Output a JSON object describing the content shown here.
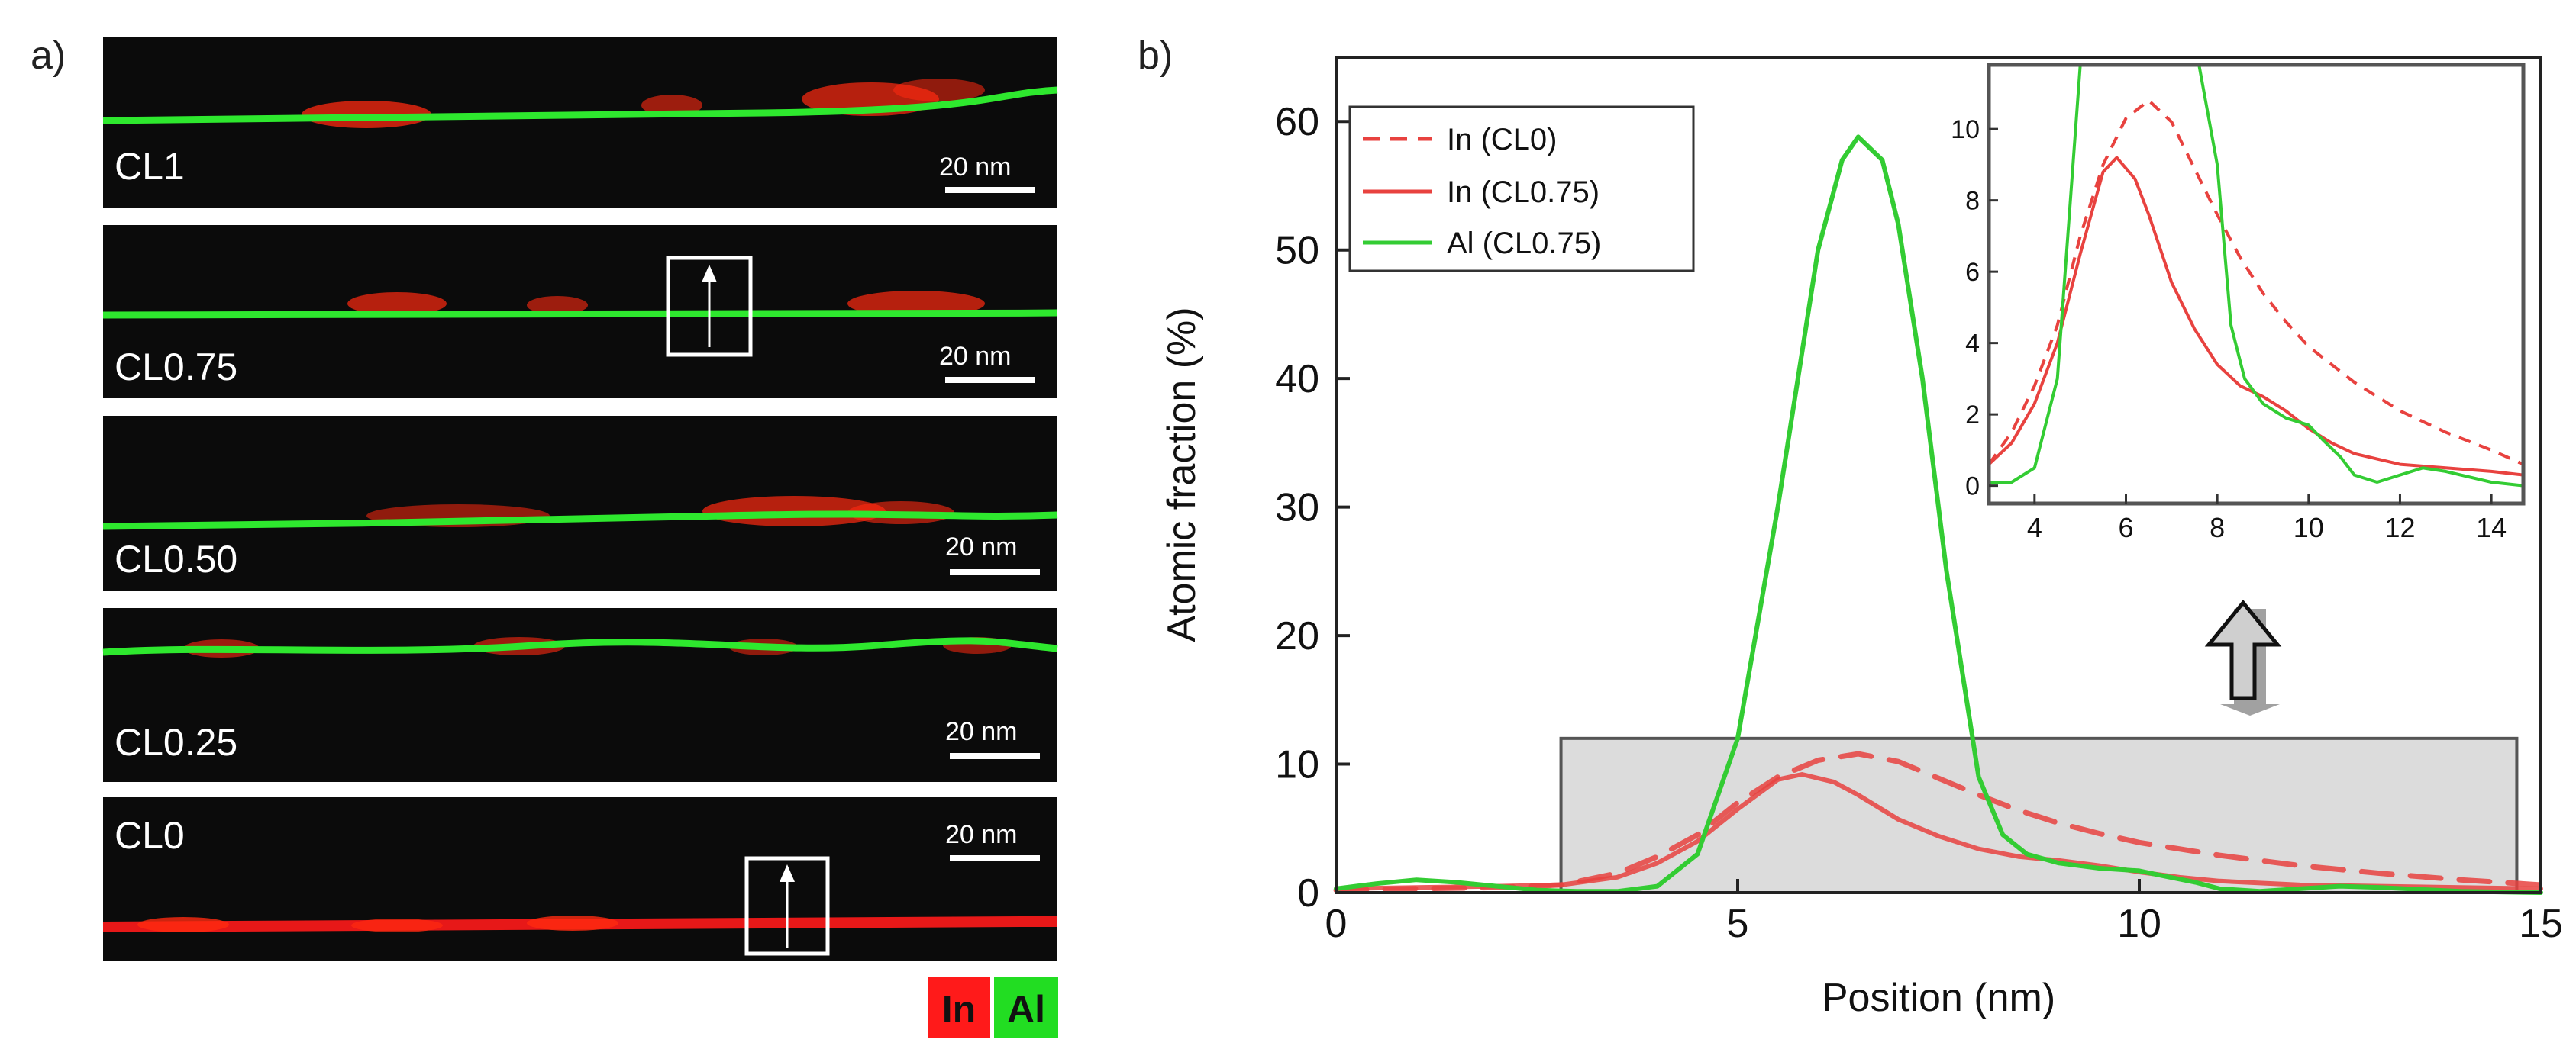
{
  "panel_a": {
    "label": "a)",
    "scale_bar_text": "20 nm",
    "legend": {
      "in_label": "In",
      "al_label": "Al"
    },
    "images": [
      {
        "name": "CL1",
        "label": "CL1",
        "has_arrow_box": false,
        "al_layer": true
      },
      {
        "name": "CL0.75",
        "label": "CL0.75",
        "has_arrow_box": true,
        "al_layer": true
      },
      {
        "name": "CL0.50",
        "label": "CL0.50",
        "has_arrow_box": false,
        "al_layer": true
      },
      {
        "name": "CL0.25",
        "label": "CL0.25",
        "has_arrow_box": false,
        "al_layer": true
      },
      {
        "name": "CL0",
        "label": "CL0",
        "has_arrow_box": true,
        "al_layer": false
      }
    ],
    "colors": {
      "in": "#ff1a1a",
      "al": "#22dd22",
      "background": "#0b0b0b"
    }
  },
  "panel_b": {
    "label": "b)",
    "chart_data": [
      {
        "name": "main",
        "type": "line",
        "xlabel": "Position (nm)",
        "ylabel": "Atomic fraction (%)",
        "xlim": [
          0,
          15
        ],
        "ylim": [
          0,
          65
        ],
        "xticks": [
          0,
          5,
          10,
          15
        ],
        "yticks": [
          0,
          10,
          20,
          30,
          40,
          50,
          60
        ],
        "legend": {
          "placement": "top-left"
        },
        "highlight_region": {
          "x": [
            2.8,
            14.7
          ],
          "y": [
            0,
            12
          ]
        },
        "series": [
          {
            "name": "In (CL0)",
            "style": "dashed",
            "color": "#e8423f",
            "x": [
              0,
              1,
              2,
              2.8,
              3.5,
              4,
              4.5,
              5,
              5.5,
              6,
              6.5,
              7,
              7.5,
              8,
              8.5,
              9,
              9.5,
              10,
              11,
              12,
              13,
              14,
              15
            ],
            "y": [
              0.2,
              0.3,
              0.4,
              0.6,
              1.5,
              2.8,
              4.5,
              7.0,
              9.0,
              10.3,
              10.8,
              10.2,
              8.9,
              7.6,
              6.4,
              5.4,
              4.6,
              3.9,
              2.9,
              2.1,
              1.5,
              1.0,
              0.6
            ]
          },
          {
            "name": "In (CL0.75)",
            "style": "solid",
            "color": "#e8423f",
            "x": [
              0,
              1,
              2,
              2.8,
              3.5,
              4,
              4.5,
              5,
              5.5,
              5.8,
              6.2,
              6.5,
              7,
              7.5,
              8,
              8.5,
              9,
              9.5,
              10,
              10.5,
              11,
              12,
              13,
              14,
              15
            ],
            "y": [
              0.3,
              0.4,
              0.5,
              0.6,
              1.2,
              2.3,
              4.0,
              6.5,
              8.8,
              9.2,
              8.6,
              7.6,
              5.7,
              4.4,
              3.4,
              2.8,
              2.5,
              2.1,
              1.6,
              1.2,
              0.9,
              0.6,
              0.5,
              0.4,
              0.3
            ]
          },
          {
            "name": "Al (CL0.75)",
            "style": "solid",
            "color": "#33cc33",
            "x": [
              0,
              0.5,
              1,
              1.5,
              2,
              2.5,
              3,
              3.5,
              4,
              4.5,
              5,
              5.5,
              6,
              6.3,
              6.5,
              6.8,
              7,
              7.3,
              7.6,
              8,
              8.3,
              8.6,
              9,
              9.5,
              10,
              10.3,
              10.7,
              11,
              11.5,
              12,
              12.5,
              13,
              14,
              15
            ],
            "y": [
              0.3,
              0.7,
              1.0,
              0.8,
              0.5,
              0.2,
              0.1,
              0.1,
              0.5,
              3.0,
              12.0,
              30.0,
              50.0,
              57.0,
              58.8,
              57.0,
              52.0,
              40.0,
              25.0,
              9.0,
              4.5,
              3.0,
              2.3,
              1.9,
              1.7,
              1.3,
              0.8,
              0.3,
              0.1,
              0.3,
              0.5,
              0.4,
              0.1,
              0.0
            ]
          }
        ]
      },
      {
        "name": "inset",
        "type": "line",
        "xlim": [
          3,
          14.7
        ],
        "ylim": [
          -0.5,
          11.8
        ],
        "xticks": [
          4,
          6,
          8,
          10,
          12,
          14
        ],
        "yticks": [
          0,
          2,
          4,
          6,
          8,
          10
        ],
        "series_ref": [
          "In (CL0)",
          "In (CL0.75)",
          "Al (CL0.75)"
        ]
      }
    ]
  }
}
